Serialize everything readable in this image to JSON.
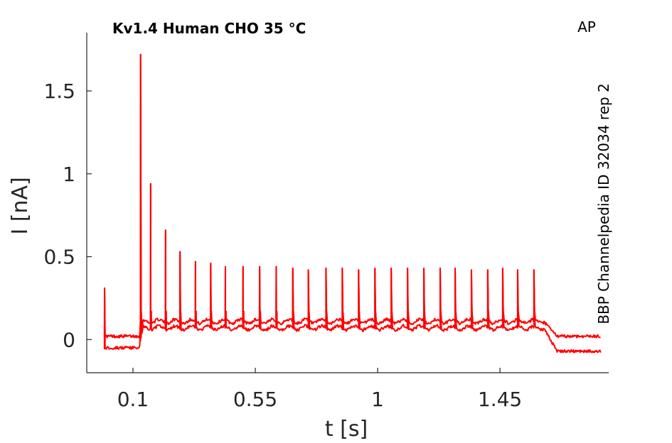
{
  "chart_data": {
    "type": "line",
    "title": "Kv1.4  Human  CHO  35 °C",
    "corner_label": "AP",
    "side_label": "BBP Channelpedia ID 32034 rep 2",
    "xlabel": "t [s]",
    "ylabel": "I [nA]",
    "xlim": [
      -0.07,
      1.85
    ],
    "ylim": [
      -0.2,
      1.92
    ],
    "xticks": [
      0.1,
      0.55,
      1,
      1.45
    ],
    "xtick_labels": [
      "0.1",
      "0.55",
      "1",
      "1.45"
    ],
    "yticks": [
      0,
      0.5,
      1,
      1.5
    ],
    "ytick_labels": [
      "0",
      "0.5",
      "1",
      "1.5"
    ],
    "grid": false,
    "line_color": "#ff0000",
    "series": [
      {
        "baseline": 0.02,
        "hold_level": 0.11,
        "tail_level": 0.02,
        "initial_spike": 0.31,
        "spike_times": [
          0.128,
          0.165,
          0.22,
          0.273,
          0.33,
          0.386,
          0.44,
          0.505,
          0.566,
          0.627,
          0.688,
          0.745,
          0.81,
          0.87,
          0.93,
          0.99,
          1.05,
          1.11,
          1.17,
          1.23,
          1.285,
          1.345,
          1.405,
          1.46,
          1.515,
          1.575
        ],
        "spike_peaks": [
          1.72,
          0.94,
          0.66,
          0.53,
          0.47,
          0.46,
          0.44,
          0.44,
          0.44,
          0.44,
          0.43,
          0.42,
          0.43,
          0.43,
          0.42,
          0.43,
          0.43,
          0.43,
          0.43,
          0.43,
          0.43,
          0.42,
          0.42,
          0.43,
          0.42,
          0.42
        ]
      },
      {
        "baseline": -0.05,
        "hold_level": 0.07,
        "tail_level": -0.07,
        "initial_spike": 0.31,
        "spike_times": [
          0.128,
          0.165,
          0.22,
          0.273,
          0.33,
          0.386,
          0.44,
          0.505,
          0.566,
          0.627,
          0.688,
          0.745,
          0.81,
          0.87,
          0.93,
          0.99,
          1.05,
          1.11,
          1.17,
          1.23,
          1.285,
          1.345,
          1.405,
          1.46,
          1.515,
          1.575
        ],
        "spike_peaks": [
          1.72,
          0.94,
          0.66,
          0.53,
          0.47,
          0.46,
          0.44,
          0.44,
          0.44,
          0.44,
          0.43,
          0.42,
          0.43,
          0.43,
          0.42,
          0.43,
          0.43,
          0.43,
          0.43,
          0.43,
          0.43,
          0.42,
          0.42,
          0.43,
          0.42,
          0.42
        ]
      }
    ],
    "protocol": {
      "trace_start": -0.005,
      "step_on": 0.122,
      "step_off": 1.61,
      "trace_end": 1.82
    }
  }
}
